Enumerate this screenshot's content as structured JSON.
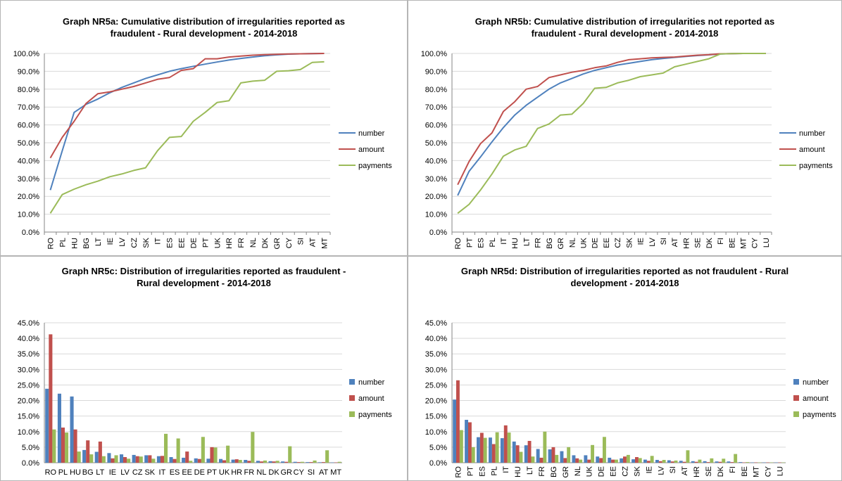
{
  "colors": {
    "number": "#4f81bd",
    "amount": "#c0504d",
    "payments": "#9bbb59",
    "grid": "#d9d9d9",
    "axis": "#868686"
  },
  "legend_labels": [
    "number",
    "amount",
    "payments"
  ],
  "y_ticks": {
    "cumulative": [
      "0.0%",
      "10.0%",
      "20.0%",
      "30.0%",
      "40.0%",
      "50.0%",
      "60.0%",
      "70.0%",
      "80.0%",
      "90.0%",
      "100.0%"
    ],
    "distribution": [
      "0.0%",
      "5.0%",
      "10.0%",
      "15.0%",
      "20.0%",
      "25.0%",
      "30.0%",
      "35.0%",
      "40.0%",
      "45.0%"
    ]
  },
  "chart_data": [
    {
      "id": "nr5a",
      "type": "line",
      "title_lines": [
        "Graph NR5a: Cumulative distribution of irregularities reported as",
        "fraudulent - Rural development - 2014-2018"
      ],
      "ylim": [
        0,
        100
      ],
      "legend": "right",
      "grid": true,
      "x": [
        "RO",
        "PL",
        "HU",
        "BG",
        "LT",
        "IE",
        "LV",
        "CZ",
        "SK",
        "IT",
        "ES",
        "EE",
        "DE",
        "PT",
        "UK",
        "HR",
        "FR",
        "NL",
        "DK",
        "GR",
        "CY",
        "SI",
        "AT",
        "MT"
      ],
      "series": [
        {
          "name": "number",
          "values": [
            23.5,
            45.5,
            67,
            71.5,
            74.5,
            78,
            81,
            83.5,
            86,
            88,
            90,
            91.5,
            92.8,
            94,
            95.2,
            96.3,
            97.2,
            98,
            98.7,
            99.2,
            99.6,
            99.8,
            99.9,
            100
          ]
        },
        {
          "name": "amount",
          "values": [
            41.5,
            53,
            62,
            72,
            77.5,
            78.5,
            80,
            81.5,
            83.5,
            85.5,
            86.5,
            90.5,
            91.5,
            97,
            97,
            98,
            98.5,
            99,
            99.3,
            99.5,
            99.7,
            99.8,
            99.9,
            100
          ]
        },
        {
          "name": "payments",
          "values": [
            10.5,
            21,
            24,
            26.5,
            28.5,
            31,
            32.5,
            34.5,
            36,
            45.5,
            53,
            53.5,
            62,
            67,
            72.5,
            73.5,
            83.5,
            84.5,
            85,
            90,
            90.3,
            91,
            95,
            95.3
          ]
        }
      ]
    },
    {
      "id": "nr5b",
      "type": "line",
      "title_lines": [
        "Graph NR5b: Cumulative distribution of irregularities not reported as",
        "fraudulent - Rural development - 2014-2018"
      ],
      "ylim": [
        0,
        100
      ],
      "legend": "right",
      "grid": true,
      "x": [
        "RO",
        "PT",
        "ES",
        "PL",
        "IT",
        "HU",
        "LT",
        "FR",
        "BG",
        "GR",
        "NL",
        "UK",
        "DE",
        "EE",
        "CZ",
        "SK",
        "IE",
        "LV",
        "SI",
        "AT",
        "HR",
        "SE",
        "DK",
        "FI",
        "BE",
        "MT",
        "CY",
        "LU"
      ],
      "series": [
        {
          "name": "number",
          "values": [
            20.5,
            34,
            42,
            50.5,
            58.5,
            65.5,
            71,
            75.5,
            80,
            83.5,
            86,
            88.5,
            90.5,
            92,
            93.5,
            94.5,
            95.5,
            96.5,
            97.2,
            97.8,
            98.3,
            98.8,
            99.2,
            99.7,
            99.9,
            100,
            100,
            100
          ]
        },
        {
          "name": "amount",
          "values": [
            26.5,
            39.5,
            49.5,
            55.5,
            67.5,
            73,
            80,
            81.5,
            86.5,
            88,
            89.5,
            90.5,
            92,
            93,
            95,
            96.5,
            97,
            97.5,
            97.8,
            98,
            98.5,
            99,
            99.3,
            99.8,
            99.9,
            100,
            100,
            100
          ]
        },
        {
          "name": "payments",
          "values": [
            10.5,
            15.5,
            23.5,
            32.5,
            42.5,
            46,
            48,
            58,
            60.5,
            65.5,
            66,
            72,
            80.5,
            81,
            83.5,
            85,
            87,
            88,
            89,
            92.5,
            94,
            95.5,
            97,
            99.7,
            99.9,
            100,
            100,
            100
          ]
        }
      ]
    },
    {
      "id": "nr5c",
      "type": "bar",
      "title_lines": [
        "Graph NR5c: Distribution of irregularities reported as fraudulent -",
        "Rural development - 2014-2018"
      ],
      "ylim": [
        0,
        45
      ],
      "legend": "right",
      "grid": true,
      "categories": [
        "RO",
        "PL",
        "HU",
        "BG",
        "LT",
        "IE",
        "LV",
        "CZ",
        "SK",
        "IT",
        "ES",
        "EE",
        "DE",
        "PT",
        "UK",
        "HR",
        "FR",
        "NL",
        "DK",
        "GR",
        "CY",
        "SI",
        "AT",
        "MT"
      ],
      "series": [
        {
          "name": "number",
          "values": [
            23.8,
            22.2,
            21.3,
            4.1,
            3.5,
            3.1,
            2.7,
            2.5,
            2.4,
            2.1,
            1.8,
            1.6,
            1.4,
            1.3,
            1.2,
            1.0,
            0.9,
            0.6,
            0.5,
            0.4,
            0.3,
            0.2,
            0.15,
            0.1
          ]
        },
        {
          "name": "amount",
          "values": [
            41.3,
            11.3,
            10.7,
            7.2,
            6.8,
            1.4,
            1.8,
            2.1,
            2.4,
            2.2,
            1.2,
            3.6,
            1.2,
            5.0,
            0.8,
            1.1,
            0.6,
            0.4,
            0.4,
            0.3,
            0.2,
            0.2,
            0.2,
            0.1
          ]
        },
        {
          "name": "payments",
          "values": [
            10.7,
            9.7,
            3.6,
            2.7,
            2.1,
            2.4,
            1.3,
            2.0,
            1.3,
            9.3,
            7.8,
            0.6,
            8.3,
            4.9,
            5.5,
            0.9,
            9.9,
            0.7,
            0.6,
            5.3,
            0.3,
            0.7,
            4.0,
            0.3
          ]
        }
      ]
    },
    {
      "id": "nr5d",
      "type": "bar",
      "title_lines": [
        "Graph NR5d: Distribution of irregularities reported as not fraudulent - Rural",
        "development - 2014-2018"
      ],
      "ylim": [
        0,
        45
      ],
      "legend": "right",
      "grid": true,
      "categories": [
        "RO",
        "PT",
        "ES",
        "PL",
        "IT",
        "HU",
        "LT",
        "FR",
        "BG",
        "GR",
        "NL",
        "UK",
        "DE",
        "EE",
        "CZ",
        "SK",
        "IE",
        "LV",
        "SI",
        "AT",
        "HR",
        "SE",
        "DK",
        "FI",
        "BE",
        "MT",
        "CY",
        "LU"
      ],
      "series": [
        {
          "name": "number",
          "values": [
            20.3,
            13.8,
            8.2,
            8.1,
            7.9,
            6.8,
            5.6,
            4.4,
            4.3,
            3.7,
            2.4,
            2.4,
            2.0,
            1.6,
            1.4,
            1.1,
            1.0,
            0.9,
            0.8,
            0.6,
            0.5,
            0.5,
            0.4,
            0.4,
            0.2,
            0.1,
            0.1,
            0.1
          ]
        },
        {
          "name": "amount",
          "values": [
            26.5,
            13.0,
            9.6,
            6.0,
            12.0,
            5.6,
            7.0,
            1.6,
            5.0,
            1.5,
            1.4,
            1.0,
            1.5,
            1.0,
            2.0,
            1.8,
            0.6,
            0.5,
            0.4,
            0.3,
            0.3,
            0.2,
            0.3,
            0.2,
            0.1,
            0.1,
            0.1,
            0.1
          ]
        },
        {
          "name": "payments",
          "values": [
            10.5,
            5.0,
            8.0,
            9.8,
            9.7,
            3.5,
            2.0,
            10.0,
            2.5,
            5.0,
            1.0,
            5.7,
            8.3,
            1.0,
            2.5,
            1.5,
            2.2,
            0.9,
            0.7,
            4.0,
            1.0,
            1.4,
            1.3,
            2.8,
            0.2,
            0.1,
            0.1,
            0.1
          ]
        }
      ]
    }
  ]
}
